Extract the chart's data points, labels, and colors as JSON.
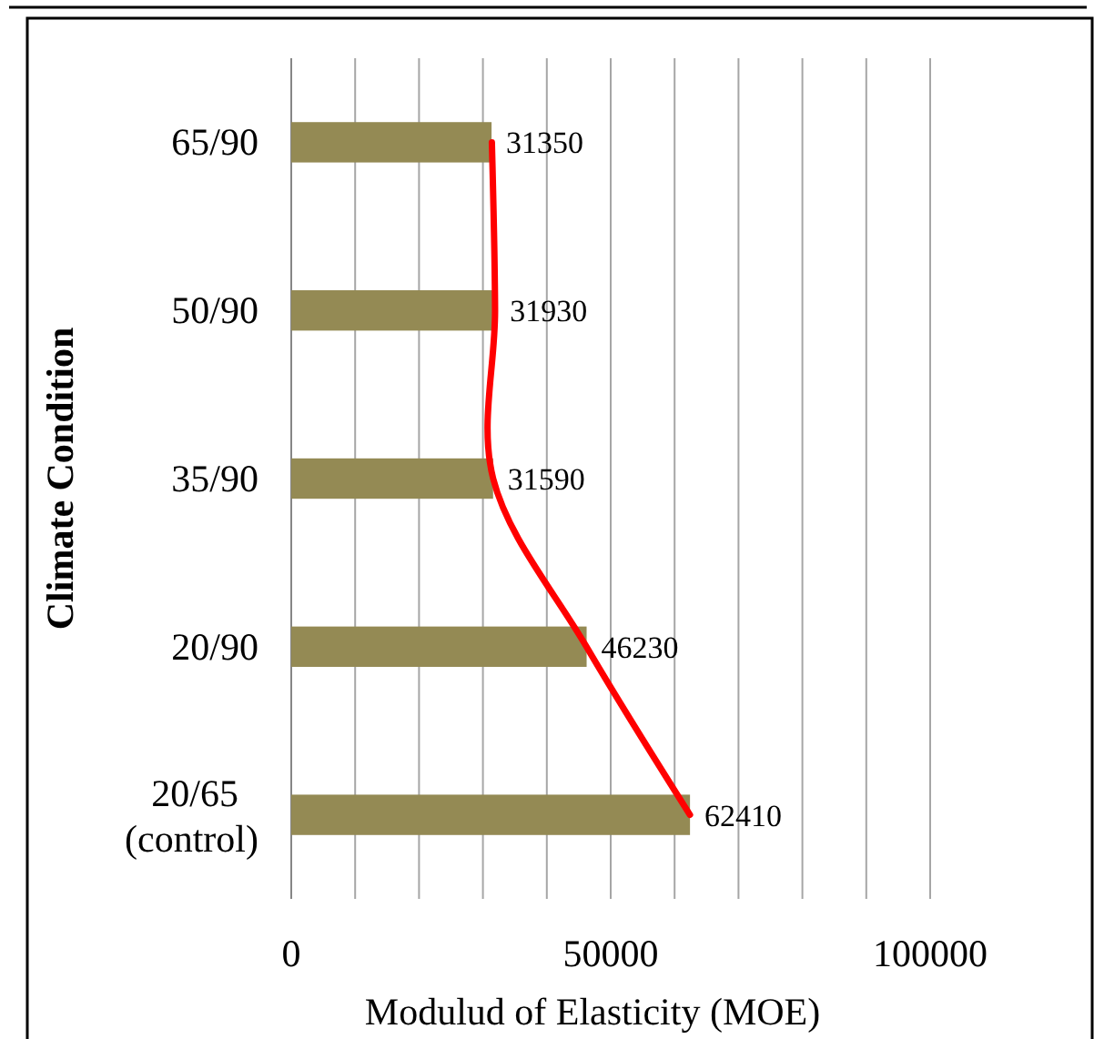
{
  "chart_data": {
    "type": "bar",
    "orientation": "horizontal",
    "categories": [
      "65/90",
      "50/90",
      "35/90",
      "20/90",
      "20/65\n(control)"
    ],
    "series": [
      {
        "color": "#948a54",
        "values": [
          31350,
          31930,
          31590,
          46230,
          62410
        ],
        "value_labels": [
          "31350",
          "31930",
          "31590",
          "46230",
          "62410"
        ]
      },
      {
        "type": "line",
        "color": "#ff0000",
        "values": [
          31400,
          31900,
          31600,
          46200,
          62400
        ]
      }
    ],
    "xlabel": "Modulud of Elasticity (MOE)",
    "ylabel": "Climate Condition",
    "xlim": [
      0,
      100000
    ],
    "xticks": [
      0,
      {
        "value": 10000,
        "label": null
      },
      {
        "value": 20000,
        "label": null
      },
      {
        "value": 30000,
        "label": null
      },
      {
        "value": 40000,
        "label": null
      },
      50000,
      {
        "value": 60000,
        "label": null
      },
      {
        "value": 70000,
        "label": null
      },
      {
        "value": 80000,
        "label": null
      },
      {
        "value": 90000,
        "label": null
      },
      100000
    ],
    "grid": "x",
    "line_style": "solid"
  }
}
